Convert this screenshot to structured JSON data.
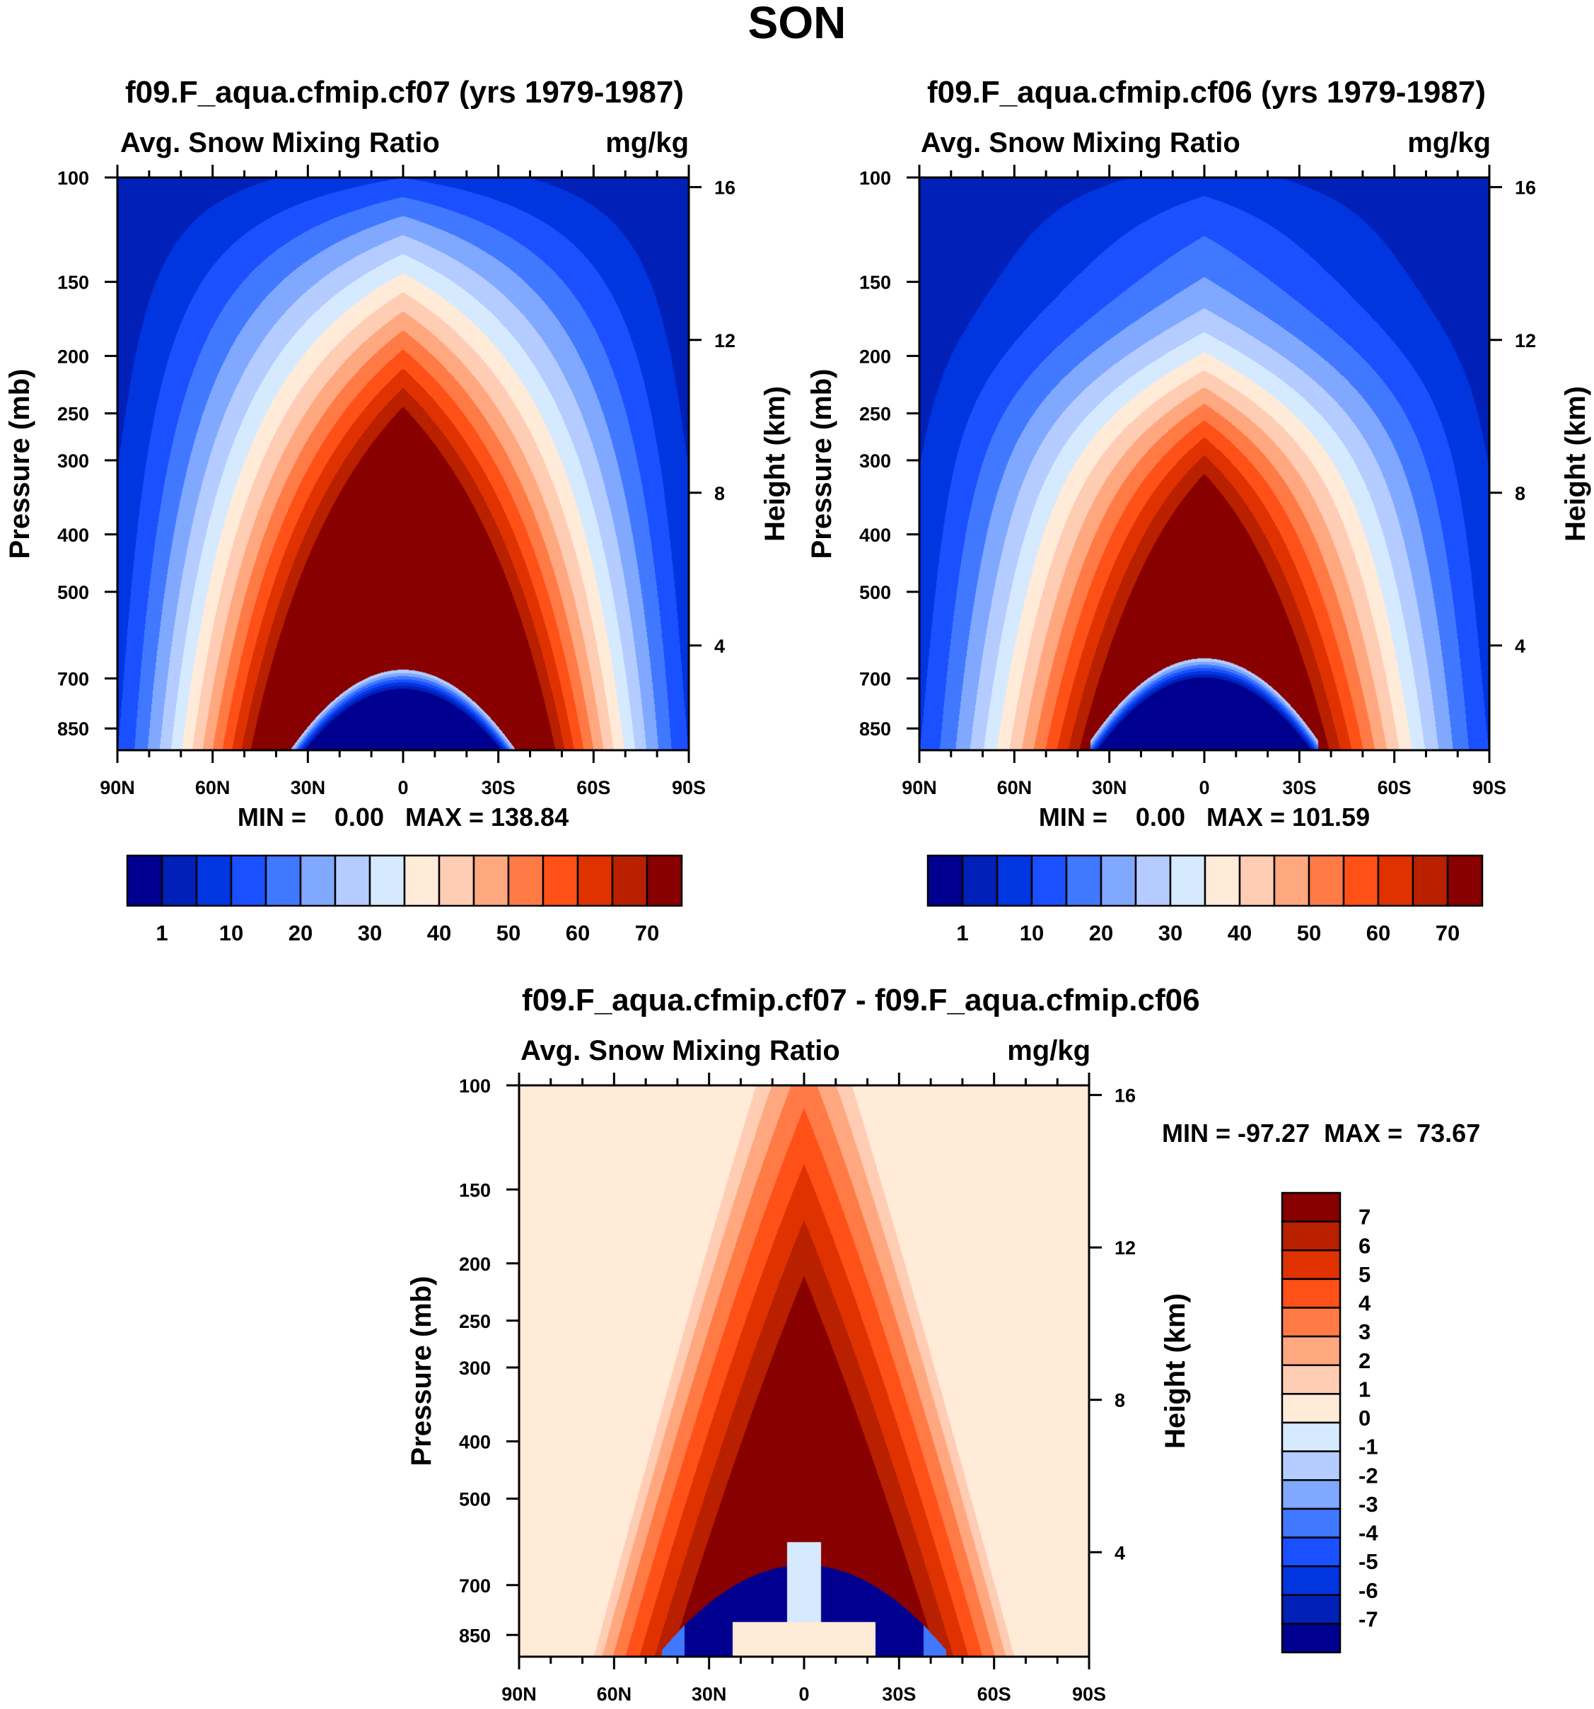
{
  "title": "SON",
  "colors": [
    "#000090",
    "#0020b8",
    "#0035e0",
    "#1a50ff",
    "#4078ff",
    "#80a8ff",
    "#b4ccff",
    "#d6eaff",
    "#ffebd8",
    "#ffccb4",
    "#ffa880",
    "#ff7a45",
    "#ff5018",
    "#e03200",
    "#b82000",
    "#880000"
  ],
  "chart_data": [
    {
      "type": "heatmap",
      "title": "f09.F_aqua.cfmip.cf07 (yrs 1979-1987)",
      "subtitle_left": "Avg. Snow Mixing Ratio",
      "subtitle_right": "mg/kg",
      "ylabel": "Pressure (mb)",
      "ylabel_right": "Height (km)",
      "xticks": [
        "90N",
        "60N",
        "30N",
        "0",
        "30S",
        "60S",
        "90S"
      ],
      "yticks": [
        100,
        150,
        200,
        250,
        300,
        400,
        500,
        700,
        850
      ],
      "yticks_right": [
        16,
        12,
        8,
        4
      ],
      "ylim": [
        100,
        925
      ],
      "minmax_text": "MIN =    0.00   MAX = 138.84",
      "min": 0.0,
      "max": 138.84,
      "colorbar_labels": [
        "1",
        "10",
        "20",
        "30",
        "40",
        "50",
        "60",
        "70"
      ],
      "peak_strength": 28
    },
    {
      "type": "heatmap",
      "title": "f09.F_aqua.cfmip.cf06 (yrs 1979-1987)",
      "subtitle_left": "Avg. Snow Mixing Ratio",
      "subtitle_right": "mg/kg",
      "ylabel": "Pressure (mb)",
      "ylabel_right": "Height (km)",
      "xticks": [
        "90N",
        "60N",
        "30N",
        "0",
        "30S",
        "60S",
        "90S"
      ],
      "yticks": [
        100,
        150,
        200,
        250,
        300,
        400,
        500,
        700,
        850
      ],
      "yticks_right": [
        16,
        12,
        8,
        4
      ],
      "ylim": [
        100,
        925
      ],
      "minmax_text": "MIN =    0.00   MAX = 101.59",
      "min": 0.0,
      "max": 101.59,
      "colorbar_labels": [
        "1",
        "10",
        "20",
        "30",
        "40",
        "50",
        "60",
        "70"
      ],
      "peak_strength": 22
    },
    {
      "type": "heatmap",
      "title": "f09.F_aqua.cfmip.cf07 - f09.F_aqua.cfmip.cf06",
      "subtitle_left": "Avg. Snow Mixing Ratio",
      "subtitle_right": "mg/kg",
      "ylabel": "Pressure (mb)",
      "ylabel_right": "Height (km)",
      "xticks": [
        "90N",
        "60N",
        "30N",
        "0",
        "30S",
        "60S",
        "90S"
      ],
      "yticks": [
        100,
        150,
        200,
        250,
        300,
        400,
        500,
        700,
        850
      ],
      "yticks_right": [
        16,
        12,
        8,
        4
      ],
      "ylim": [
        100,
        925
      ],
      "minmax_text": "MIN = -97.27  MAX =  73.67",
      "min": -97.27,
      "max": 73.67,
      "colorbar_labels": [
        "7",
        "6",
        "5",
        "4",
        "3",
        "2",
        "1",
        "0",
        "-1",
        "-2",
        "-3",
        "-4",
        "-5",
        "-6",
        "-7"
      ]
    }
  ]
}
